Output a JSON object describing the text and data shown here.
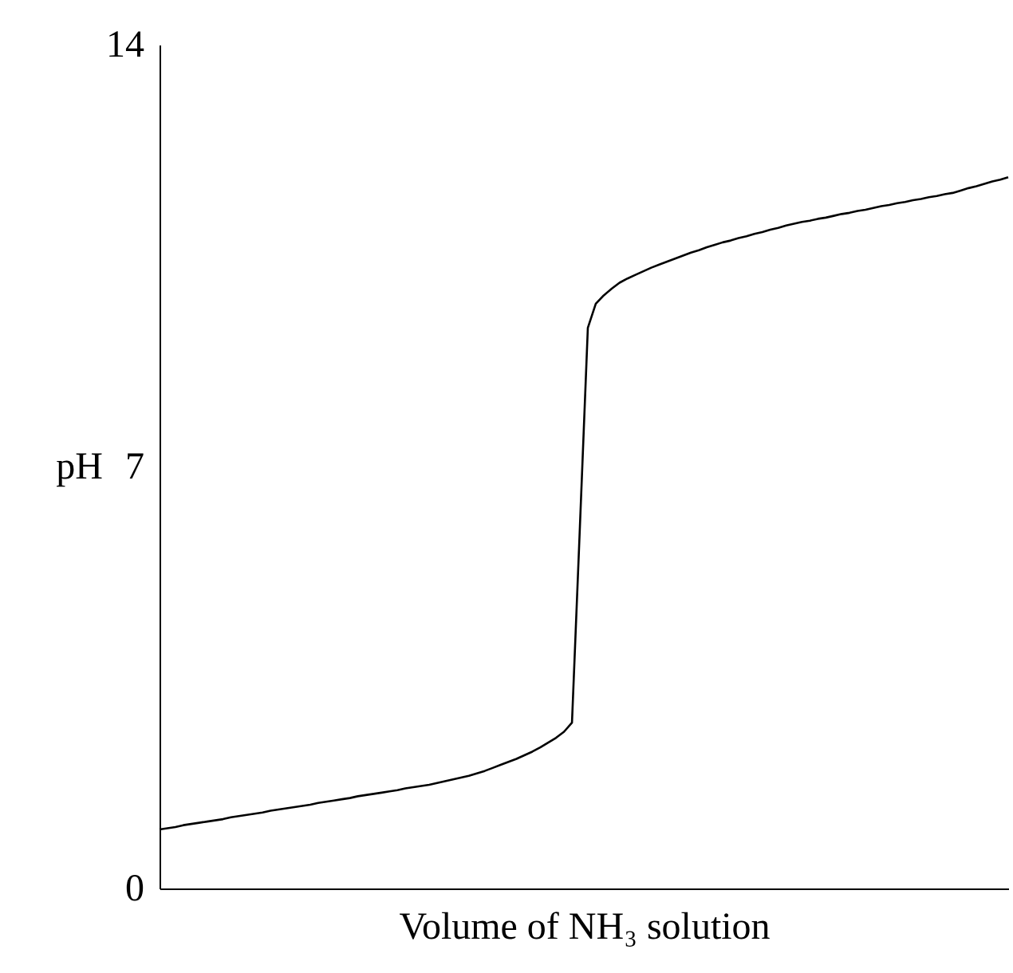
{
  "chart_data": {
    "type": "line",
    "xlabel": "Volume of NH₃ solution",
    "ylabel": "pH",
    "categories": [
      null,
      null,
      null,
      null,
      null,
      null,
      null,
      null,
      null,
      null,
      null,
      null,
      null,
      null,
      null,
      null,
      null,
      null,
      null,
      null,
      null,
      null,
      null,
      null,
      null,
      null,
      null,
      null,
      null,
      null,
      null,
      null,
      null,
      null,
      null,
      null,
      null,
      null,
      null,
      null,
      null,
      null,
      null,
      null,
      null,
      null,
      null,
      null,
      null,
      null,
      null,
      null,
      null,
      null,
      null,
      null,
      null,
      null,
      null,
      null,
      null,
      null,
      null,
      null,
      null,
      null,
      null,
      null,
      null,
      null,
      null,
      null,
      null,
      null,
      null,
      null,
      null,
      null,
      null,
      null,
      null,
      null,
      null,
      null,
      null,
      null,
      null,
      null,
      null,
      null,
      null,
      null,
      null,
      null,
      null,
      null,
      null,
      null,
      null,
      null,
      null,
      null,
      null,
      null,
      null,
      null,
      null,
      null
    ],
    "values": [
      0.98,
      1.0,
      1.02,
      1.05,
      1.07,
      1.09,
      1.11,
      1.13,
      1.15,
      1.18,
      1.2,
      1.22,
      1.24,
      1.26,
      1.29,
      1.31,
      1.33,
      1.35,
      1.37,
      1.39,
      1.42,
      1.44,
      1.46,
      1.48,
      1.5,
      1.53,
      1.55,
      1.57,
      1.59,
      1.61,
      1.63,
      1.66,
      1.68,
      1.7,
      1.72,
      1.75,
      1.78,
      1.81,
      1.84,
      1.87,
      1.91,
      1.95,
      2.0,
      2.05,
      2.1,
      2.15,
      2.21,
      2.27,
      2.34,
      2.42,
      2.5,
      2.6,
      2.75,
      6.0,
      9.3,
      9.7,
      9.84,
      9.95,
      10.05,
      10.12,
      10.18,
      10.24,
      10.3,
      10.35,
      10.4,
      10.45,
      10.5,
      10.55,
      10.59,
      10.64,
      10.68,
      10.72,
      10.75,
      10.79,
      10.82,
      10.86,
      10.89,
      10.93,
      10.96,
      11.0,
      11.03,
      11.06,
      11.08,
      11.11,
      11.13,
      11.16,
      11.19,
      11.21,
      11.24,
      11.26,
      11.29,
      11.32,
      11.34,
      11.37,
      11.39,
      11.42,
      11.44,
      11.47,
      11.49,
      11.52,
      11.54,
      11.58,
      11.62,
      11.65,
      11.69,
      11.73,
      11.76,
      11.8
    ],
    "color": "#000000",
    "ylim": [
      0,
      14
    ],
    "yticks": [
      0,
      7,
      14
    ],
    "tick_labels": "y"
  }
}
